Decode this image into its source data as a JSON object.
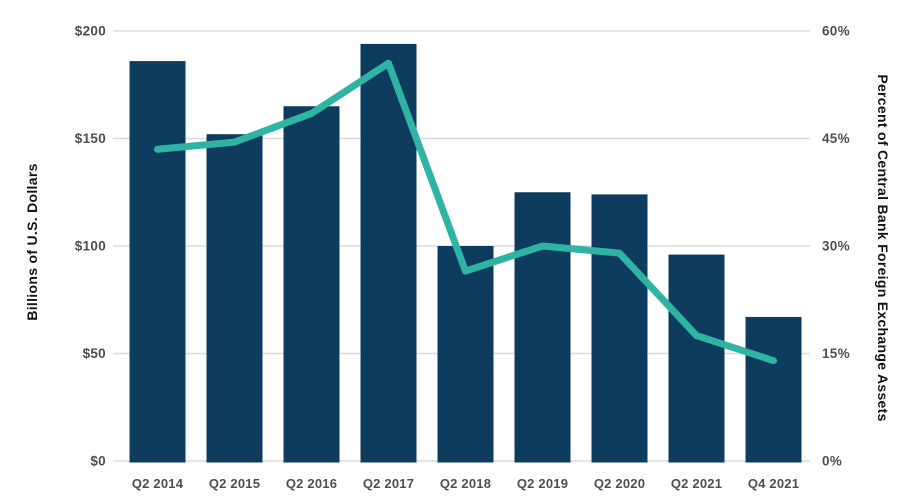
{
  "chart_data": {
    "type": "combo-bar-line",
    "categories": [
      "Q2 2014",
      "Q2 2015",
      "Q2 2016",
      "Q2 2017",
      "Q2 2018",
      "Q2 2019",
      "Q2 2020",
      "Q2 2021",
      "Q4 2021"
    ],
    "series": [
      {
        "name": "Billions of U.S. Dollars",
        "type": "bar",
        "axis": "left",
        "values": [
          186,
          152,
          165,
          194,
          100,
          125,
          124,
          96,
          67
        ]
      },
      {
        "name": "Percent of Central Bank Foreign Exchange Assets",
        "type": "line",
        "axis": "right",
        "values": [
          43.5,
          44.5,
          48.5,
          55.5,
          26.5,
          30,
          29,
          17.5,
          14
        ]
      }
    ],
    "title": "",
    "xlabel": "",
    "ylabel_left": "Billions of U.S. Dollars",
    "ylabel_right": "Percent of Central Bank Foreign Exchange Assets",
    "left_axis": {
      "min": 0,
      "max": 200,
      "tick_labels": [
        "$200",
        "$150",
        "$100",
        "$50",
        "$0"
      ]
    },
    "right_axis": {
      "min": 0,
      "max": 60,
      "tick_labels": [
        "60%",
        "45%",
        "30%",
        "15%",
        "0%"
      ]
    },
    "grid": "horizontal",
    "legend": "none",
    "colors": {
      "bar": "#0d3c5e",
      "line": "#2fb4a4",
      "gridline": "#dbdbdb",
      "tick_text": "#4f4f4f",
      "axis_title_text": "#141414"
    }
  }
}
